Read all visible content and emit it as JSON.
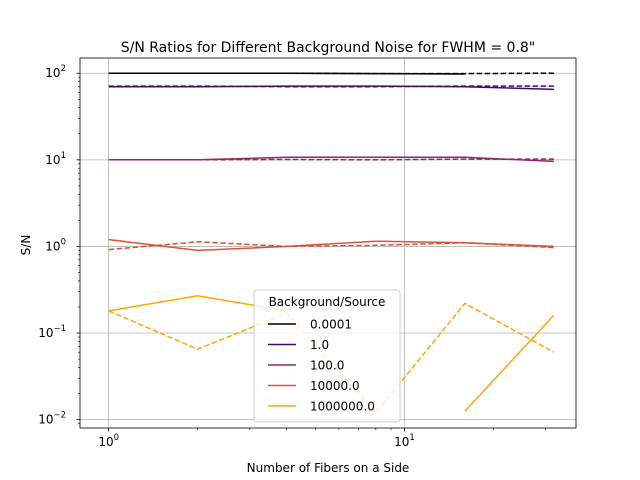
{
  "chart_data": {
    "type": "line",
    "title": "S/N Ratios for Different Background Noise for FWHM = 0.8\"",
    "xlabel": "Number of Fibers on a Side",
    "ylabel": "S/N",
    "xscale": "log",
    "yscale": "log",
    "xlim": [
      0.8,
      38
    ],
    "ylim": [
      0.008,
      150
    ],
    "x": [
      1,
      2,
      4,
      8,
      16,
      32
    ],
    "xticks": [
      {
        "value": 1,
        "base": "10",
        "exp": "0"
      },
      {
        "value": 10,
        "base": "10",
        "exp": "1"
      }
    ],
    "yticks": [
      {
        "value": 0.01,
        "base": "10",
        "exp": "−2"
      },
      {
        "value": 0.1,
        "base": "10",
        "exp": "−1"
      },
      {
        "value": 1,
        "base": "10",
        "exp": "0"
      },
      {
        "value": 10,
        "base": "10",
        "exp": "1"
      },
      {
        "value": 100,
        "base": "10",
        "exp": "2"
      }
    ],
    "grid": true,
    "legend": {
      "title": "Background/Source",
      "placement": "lower-center"
    },
    "series": [
      {
        "name": "0.0001",
        "color": "#000004",
        "solid": [
          100,
          100,
          100,
          99,
          98,
          null
        ],
        "dashed": [
          100,
          100,
          100,
          99,
          99,
          100
        ]
      },
      {
        "name": "1.0",
        "color": "#420a68",
        "solid": [
          70,
          70,
          71,
          71,
          70,
          65
        ],
        "dashed": [
          71,
          71,
          70,
          70,
          71,
          71
        ]
      },
      {
        "name": "100.0",
        "color": "#932667",
        "solid": [
          10,
          10,
          10.7,
          10.7,
          10.7,
          9.6
        ],
        "dashed": [
          10,
          10,
          10.1,
          10,
          10.2,
          10.2
        ]
      },
      {
        "name": "10000.0",
        "color": "#dd513a",
        "solid": [
          1.2,
          0.9,
          1.0,
          1.15,
          1.1,
          1.0
        ],
        "dashed": [
          0.92,
          1.13,
          1.0,
          1.03,
          1.1,
          0.97
        ]
      },
      {
        "name": "1000000.0",
        "color": "#fca50a",
        "solid": [
          0.18,
          0.27,
          0.18,
          null,
          0.0125,
          0.16
        ],
        "dashed": [
          0.18,
          0.065,
          0.17,
          0.012,
          0.22,
          0.06
        ]
      }
    ]
  }
}
